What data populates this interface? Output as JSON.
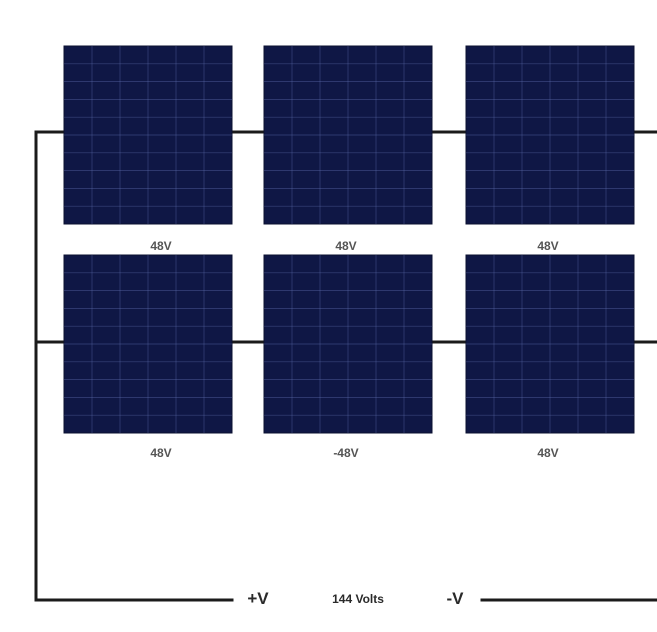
{
  "colors": {
    "panel": "#0f1745",
    "cell_grid": "#5a6aa8",
    "wire": "#1b1b1b",
    "label": "#555555"
  },
  "panels": {
    "row1": [
      {
        "label": "48V"
      },
      {
        "label": "48V"
      },
      {
        "label": "48V"
      }
    ],
    "row2": [
      {
        "label": "48V"
      },
      {
        "label": "-48V"
      },
      {
        "label": "48V"
      }
    ]
  },
  "output": {
    "positive": "+V",
    "total": "144 Volts",
    "negative": "-V"
  }
}
